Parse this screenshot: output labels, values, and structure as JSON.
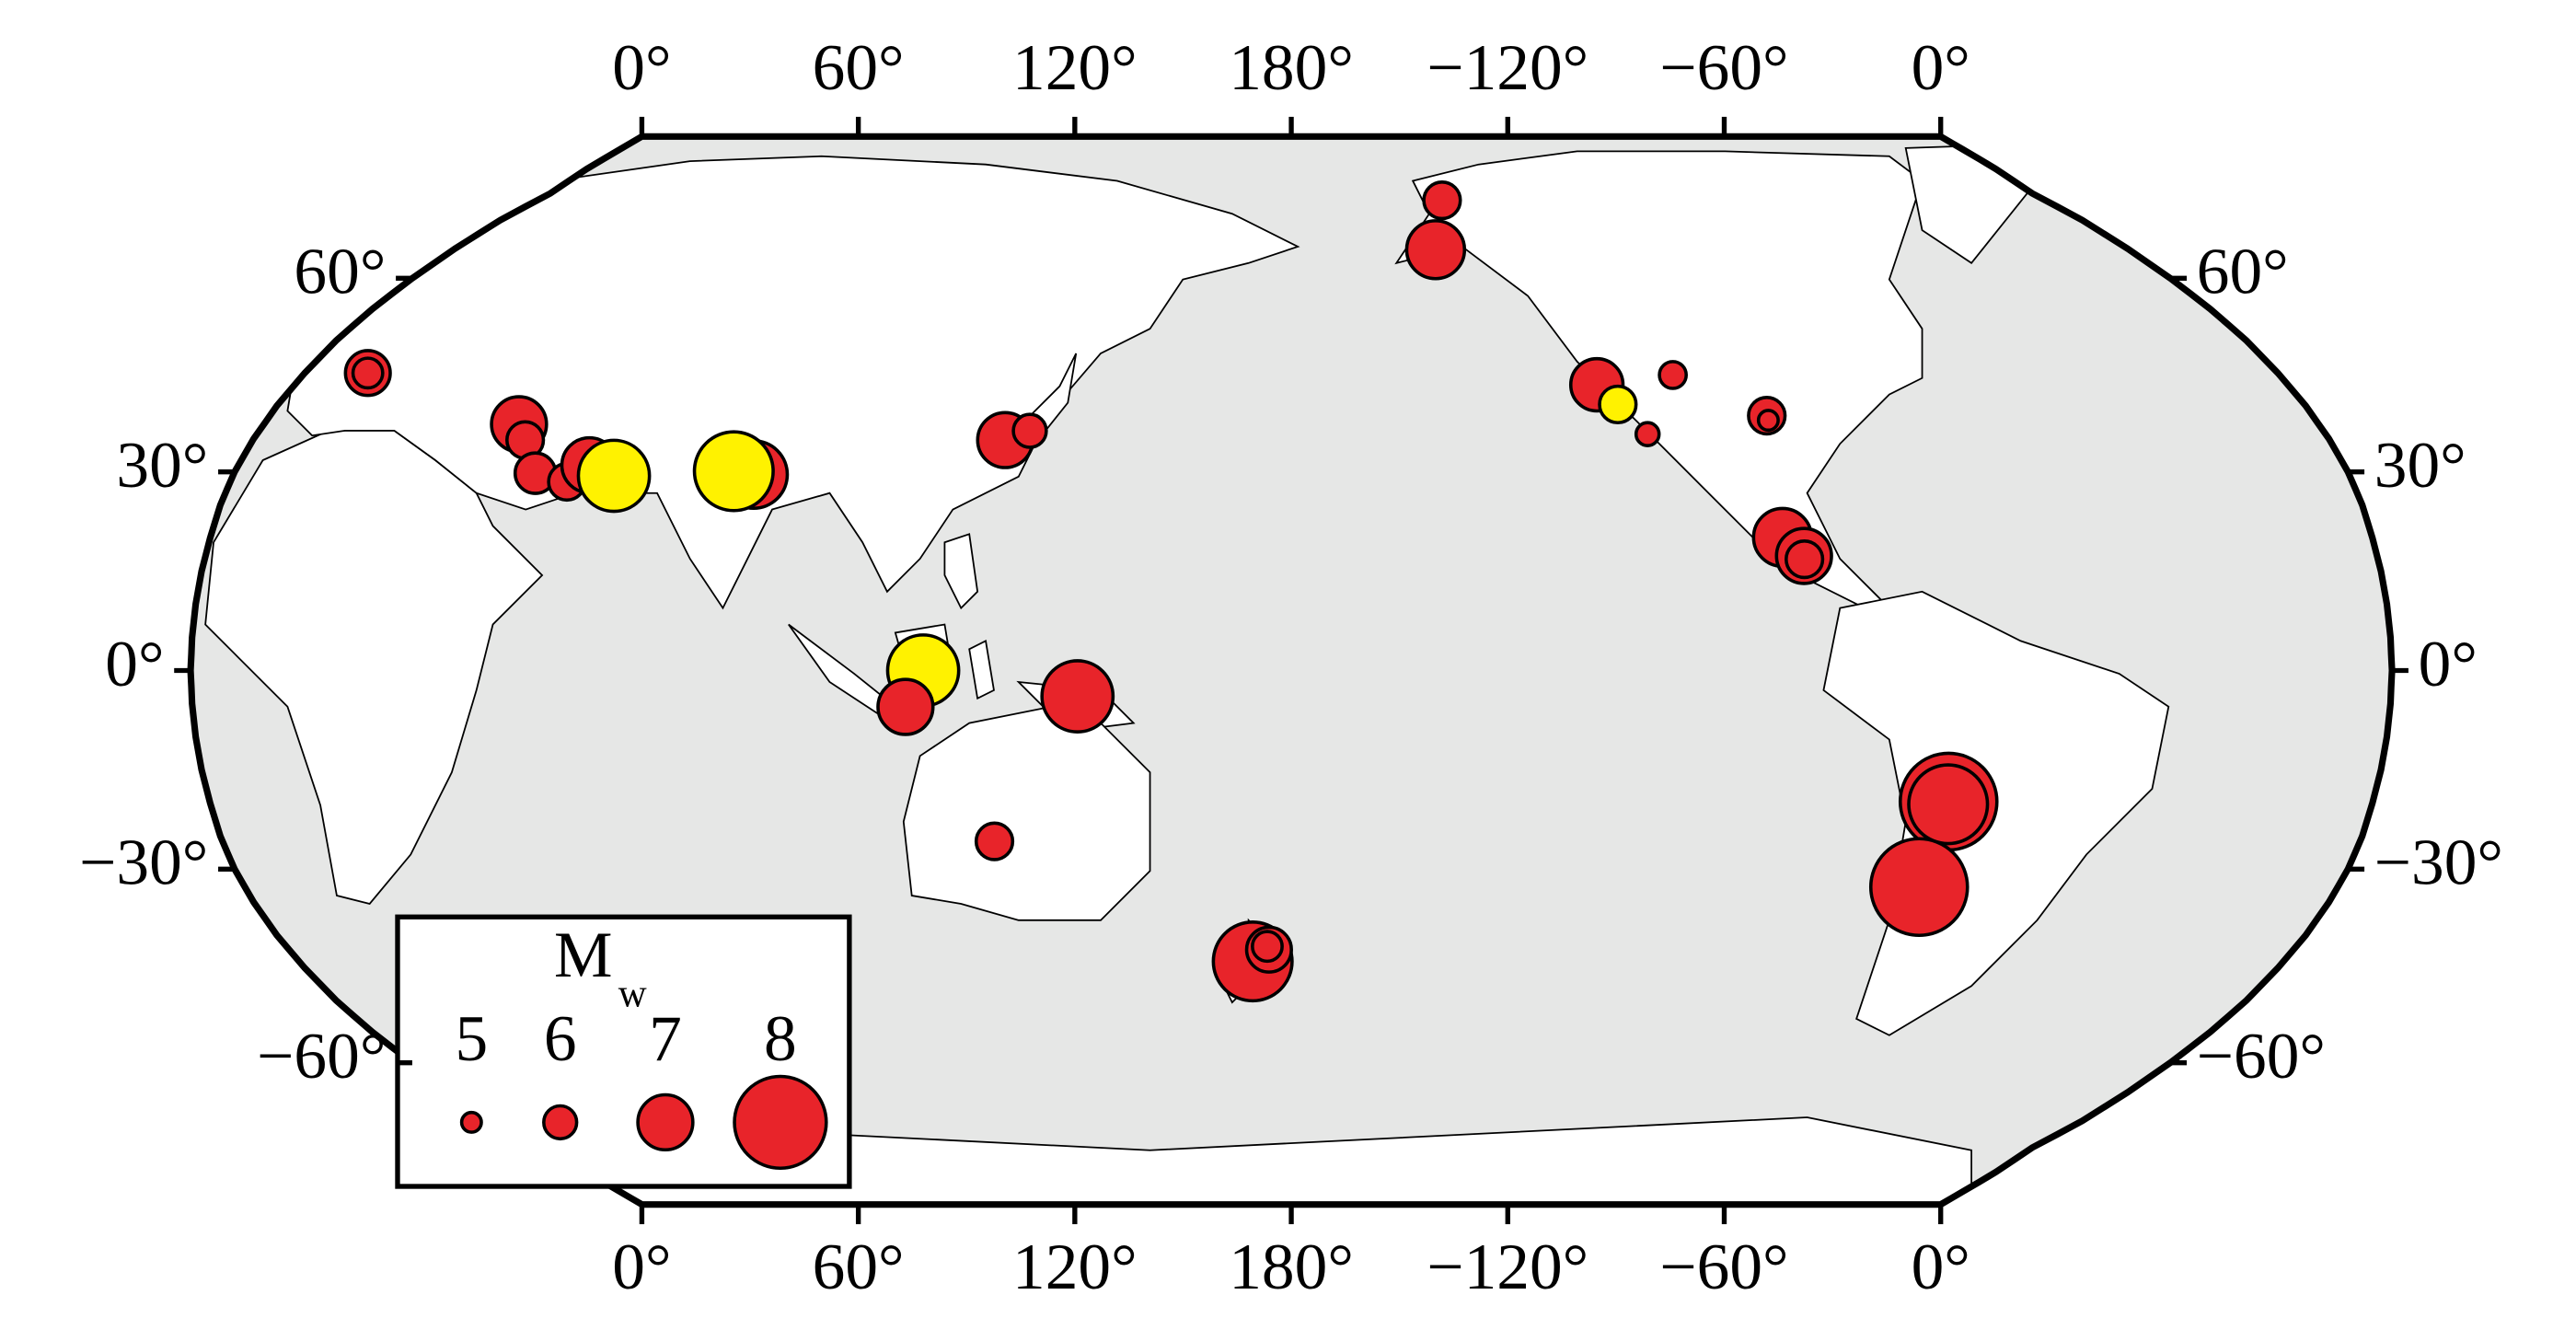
{
  "chart_data": {
    "type": "map",
    "xticks": [
      {
        "value": 0,
        "label": "0°"
      },
      {
        "value": 60,
        "label": "60°"
      },
      {
        "value": 120,
        "label": "120°"
      },
      {
        "value": 180,
        "label": "180°"
      },
      {
        "value": -120,
        "label": "−120°"
      },
      {
        "value": -60,
        "label": "−60°"
      },
      {
        "value": 0,
        "label": "0°"
      }
    ],
    "yticks": [
      {
        "value": 60,
        "label": "60°"
      },
      {
        "value": 30,
        "label": "30°"
      },
      {
        "value": 0,
        "label": "0°"
      },
      {
        "value": -30,
        "label": "−30°"
      },
      {
        "value": -60,
        "label": "−60°"
      }
    ],
    "lon": [
      11.5,
      11.5,
      44.7,
      47.2,
      51.3,
      57.1,
      60,
      64.8,
      88.5,
      85,
      130.4,
      134.4,
      -144,
      -149,
      -124.8,
      -122,
      -118,
      -110.5,
      -96.2,
      -96.2,
      -98.2,
      -95,
      -95,
      119.8,
      116.8,
      145,
      130,
      173,
      176,
      175.7,
      -70.6,
      -70.6,
      -72
    ],
    "lat": [
      45,
      45,
      37.2,
      34.8,
      29.8,
      28.5,
      31,
      29.4,
      29.6,
      30.1,
      34.8,
      36.2,
      73.7,
      64.8,
      43.2,
      40.2,
      35.7,
      44.7,
      38.5,
      37.8,
      20.1,
      17.3,
      16.8,
      0,
      -5.5,
      -3.9,
      -25.8,
      -44,
      -42.2,
      -41.7,
      -19.8,
      -20.2,
      -32.7
    ],
    "mw": [
      6.6,
      5.8,
      7.0,
      6.2,
      6.4,
      6.2,
      7.0,
      7.5,
      7.4,
      7.7,
      7.0,
      6.0,
      6.2,
      7.1,
      6.9,
      6.2,
      5.3,
      5.6,
      6.2,
      5.0,
      7.1,
      7.0,
      6.2,
      7.5,
      7.0,
      7.5,
      6.2,
      7.7,
      6.6,
      5.8,
      8.1,
      7.7,
      8.1
    ],
    "colors": [
      "#e8242a",
      "#e8242a",
      "#e8242a",
      "#e8242a",
      "#e8242a",
      "#e8242a",
      "#e8242a",
      "#fff200",
      "#e8242a",
      "#fff200",
      "#e8242a",
      "#e8242a",
      "#e8242a",
      "#e8242a",
      "#e8242a",
      "#fff200",
      "#e8242a",
      "#e8242a",
      "#e8242a",
      "#e8242a",
      "#e8242a",
      "#e8242a",
      "#e8242a",
      "#fff200",
      "#e8242a",
      "#e8242a",
      "#e8242a",
      "#e8242a",
      "#e8242a",
      "#e8242a",
      "#e8242a",
      "#e8242a",
      "#e8242a"
    ],
    "legend": {
      "title": "M",
      "subscript": "w",
      "values": [
        5,
        6,
        7,
        8
      ],
      "color": "#e8242a"
    }
  }
}
